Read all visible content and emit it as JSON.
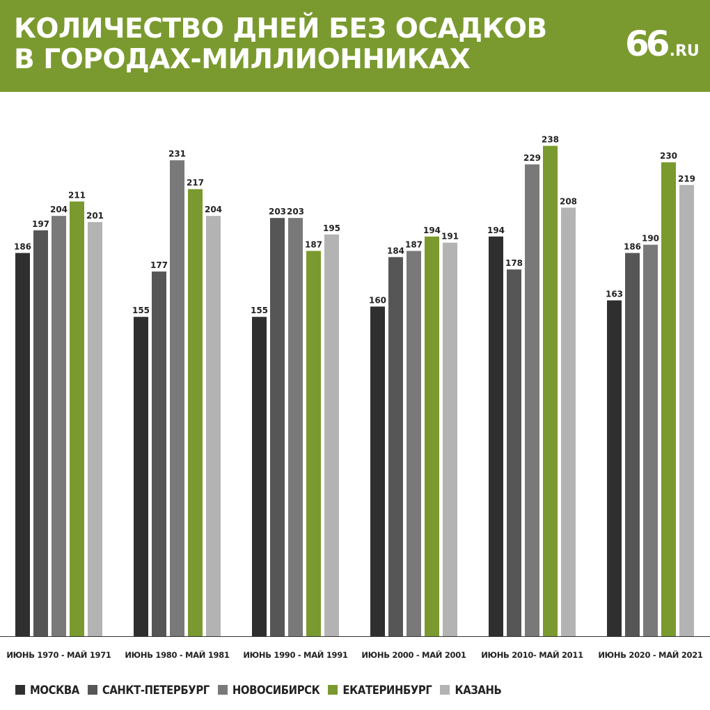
{
  "header": {
    "title_line1": "КОЛИЧЕСТВО ДНЕЙ БЕЗ ОСАДКОВ",
    "title_line2": "В ГОРОДАХ-МИЛЛИОННИКАХ",
    "logo_number": "66",
    "logo_domain": ".RU",
    "background_color": "#7a9a2f"
  },
  "chart_data": {
    "type": "bar",
    "title": "КОЛИЧЕСТВО ДНЕЙ БЕЗ ОСАДКОВ В ГОРОДАХ-МИЛЛИОННИКАХ",
    "xlabel": "",
    "ylabel": "",
    "ylim": [
      0,
      250
    ],
    "grid": false,
    "legend_position": "bottom",
    "categories": [
      "ИЮНЬ 1970 - МАЙ 1971",
      "ИЮНЬ 1980 - МАЙ 1981",
      "ИЮНЬ 1990 - МАЙ 1991",
      "ИЮНЬ 2000 - МАЙ 2001",
      "ИЮНЬ 2010- МАЙ 2011",
      "ИЮНЬ 2020 - МАЙ 2021"
    ],
    "series": [
      {
        "name": "МОСКВА",
        "color": "#2f2f2f",
        "values": [
          186,
          155,
          155,
          160,
          194,
          163
        ]
      },
      {
        "name": "САНКТ-ПЕТЕРБУРГ",
        "color": "#565656",
        "values": [
          197,
          177,
          203,
          184,
          178,
          186
        ]
      },
      {
        "name": "НОВОСИБИРСК",
        "color": "#797979",
        "values": [
          204,
          231,
          203,
          187,
          229,
          190
        ]
      },
      {
        "name": "ЕКАТЕРИНБУРГ",
        "color": "#7a9a2f",
        "values": [
          211,
          217,
          187,
          194,
          238,
          230
        ]
      },
      {
        "name": "КАЗАНЬ",
        "color": "#b3b3b3",
        "values": [
          201,
          204,
          195,
          191,
          208,
          219
        ]
      }
    ]
  }
}
